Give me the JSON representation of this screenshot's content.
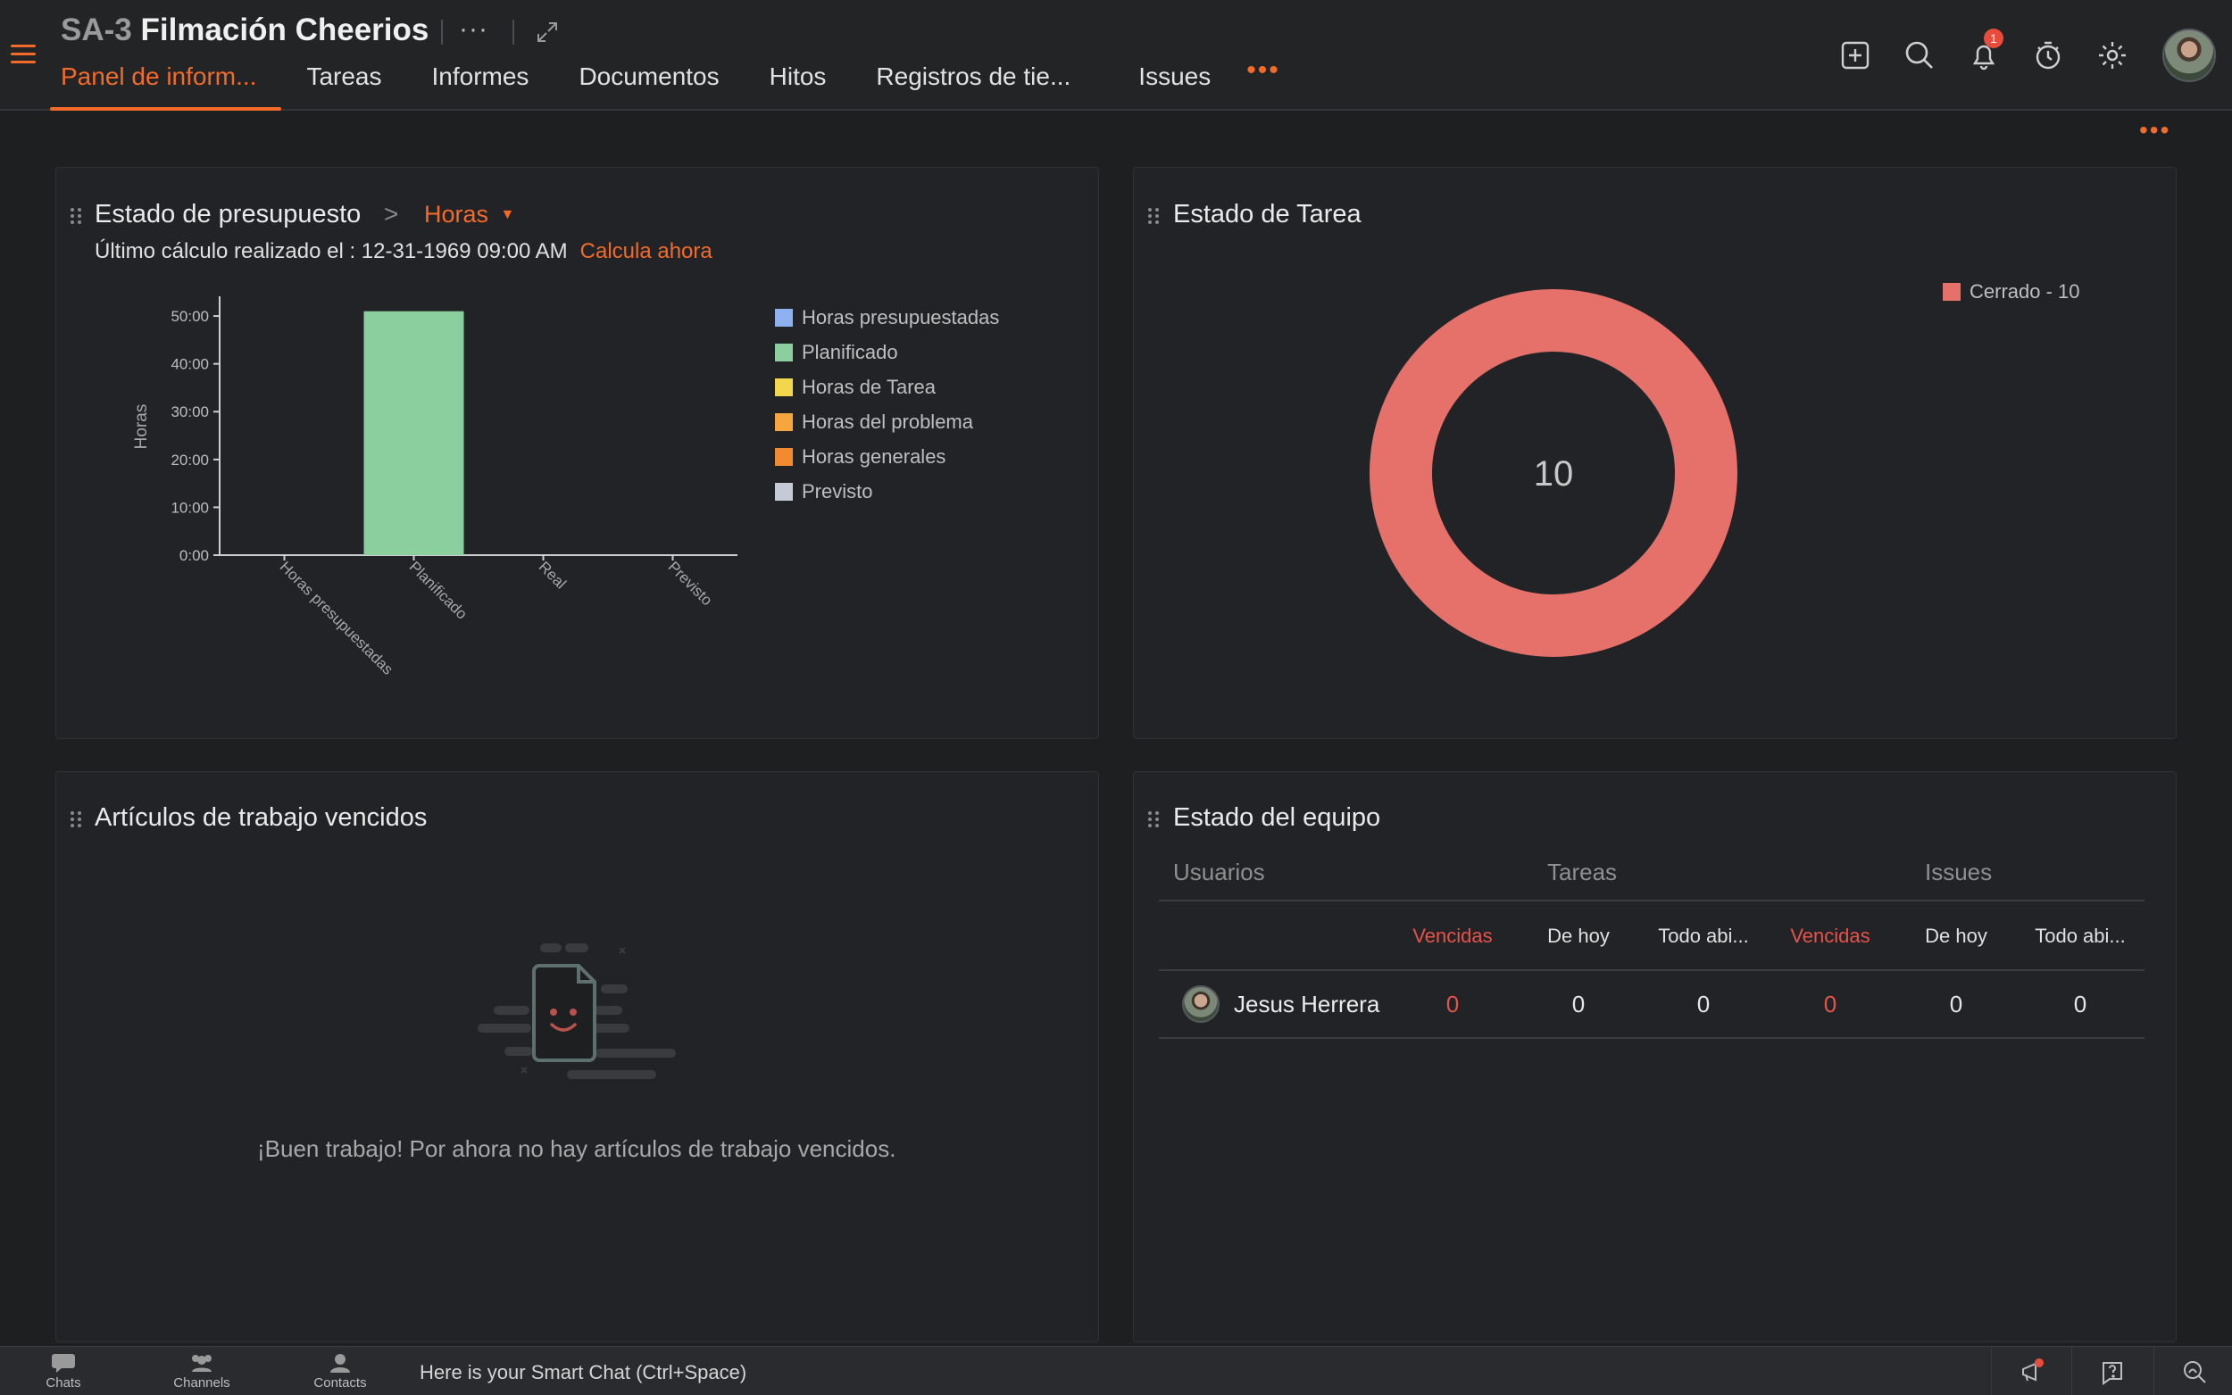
{
  "header": {
    "project_code": "SA-3",
    "project_name": "Filmación Cheerios",
    "more": "···",
    "tabs": [
      {
        "label": "Panel de inform..."
      },
      {
        "label": "Tareas"
      },
      {
        "label": "Informes"
      },
      {
        "label": "Documentos"
      },
      {
        "label": "Hitos"
      },
      {
        "label": "Registros de tie..."
      },
      {
        "label": "Issues"
      }
    ],
    "tabs_more": "•••",
    "notification_count": "1",
    "icons": [
      "add-icon",
      "search-icon",
      "bell-icon",
      "timer-icon",
      "gear-icon"
    ]
  },
  "page_more": "•••",
  "budget": {
    "title": "Estado de presupuesto",
    "chevron": ">",
    "dropdown": "Horas",
    "last_calc_label": "Último cálculo realizado el : 12-31-1969 09:00 AM",
    "calc_link": "Calcula ahora",
    "legend": [
      {
        "label": "Horas presupuestadas",
        "color": "#8fb0ee"
      },
      {
        "label": "Planificado",
        "color": "#8ccf9e"
      },
      {
        "label": "Horas de Tarea",
        "color": "#f2d64b"
      },
      {
        "label": "Horas del problema",
        "color": "#f5a63c"
      },
      {
        "label": "Horas generales",
        "color": "#f28b30"
      },
      {
        "label": "Previsto",
        "color": "#c5cbd6"
      }
    ]
  },
  "chart_data": [
    {
      "type": "bar",
      "title": "Estado de presupuesto",
      "ylabel": "Horas",
      "categories": [
        "Horas presupuestadas",
        "Planificado",
        "Real",
        "Previsto"
      ],
      "values": [
        0,
        51,
        0,
        0
      ],
      "colors": [
        "#8fb0ee",
        "#8ccf9e",
        "#f2d64b",
        "#c5cbd6"
      ],
      "yticks": [
        "0:00",
        "10:00",
        "20:00",
        "30:00",
        "40:00",
        "50:00"
      ],
      "ylim": [
        0,
        53
      ],
      "grid": false
    },
    {
      "type": "pie",
      "title": "Estado de Tarea",
      "center_label": "10",
      "slices": [
        {
          "name": "Cerrado",
          "value": 10,
          "color": "#e5716a"
        }
      ],
      "legend": [
        "Cerrado - 10"
      ],
      "legend_position": "top-right"
    }
  ],
  "task_status": {
    "title": "Estado de Tarea"
  },
  "overdue": {
    "title": "Artículos de trabajo vencidos",
    "empty_message": "¡Buen trabajo! Por ahora no hay artículos de trabajo vencidos."
  },
  "team": {
    "title": "Estado del equipo",
    "group_headers": {
      "users": "Usuarios",
      "tasks": "Tareas",
      "issues": "Issues"
    },
    "sub_headers": [
      "Vencidas",
      "De hoy",
      "Todo abi...",
      "Vencidas",
      "De hoy",
      "Todo abi..."
    ],
    "overdue_color": "#e5534b",
    "rows": [
      {
        "name": "Jesus Herrera",
        "values": [
          "0",
          "0",
          "0",
          "0",
          "0",
          "0"
        ]
      }
    ]
  },
  "bottom": {
    "chats": "Chats",
    "channels": "Channels",
    "contacts": "Contacts",
    "smart_chat": "Here is your Smart Chat (Ctrl+Space)"
  }
}
